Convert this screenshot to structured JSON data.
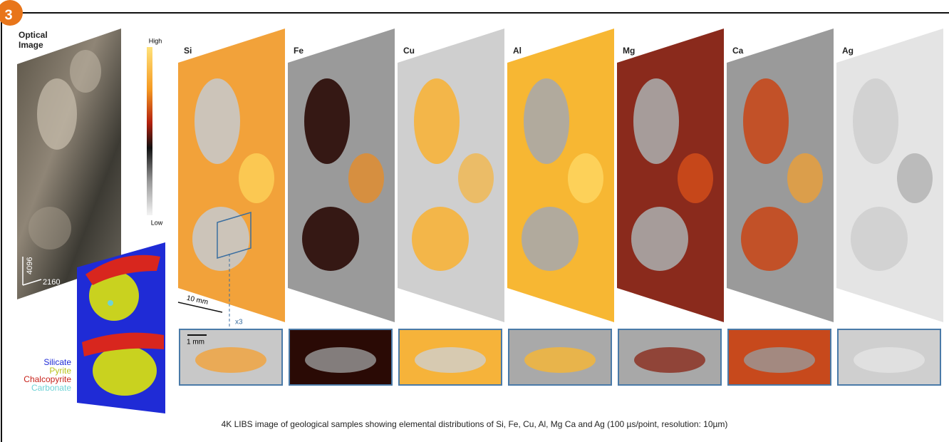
{
  "badge": "3",
  "optical": {
    "title": [
      "Optical",
      "Image"
    ],
    "axis_y": "4096",
    "axis_x": "2160"
  },
  "colorbar": {
    "high": "High",
    "low": "Low"
  },
  "elements": [
    "Si",
    "Fe",
    "Cu",
    "Al",
    "Mg",
    "Ca",
    "Ag"
  ],
  "scale_bars": {
    "large": "10 mm",
    "zoom": "x3",
    "small": "1 mm"
  },
  "legend": [
    "Silicate",
    "Pyrite",
    "Chalcopyrite",
    "Carbonate"
  ],
  "caption": "4K LIBS image of geological samples showing elemental distributions of Si, Fe, Cu, Al, Mg Ca and Ag (100 µs/point, resolution: 10µm)"
}
